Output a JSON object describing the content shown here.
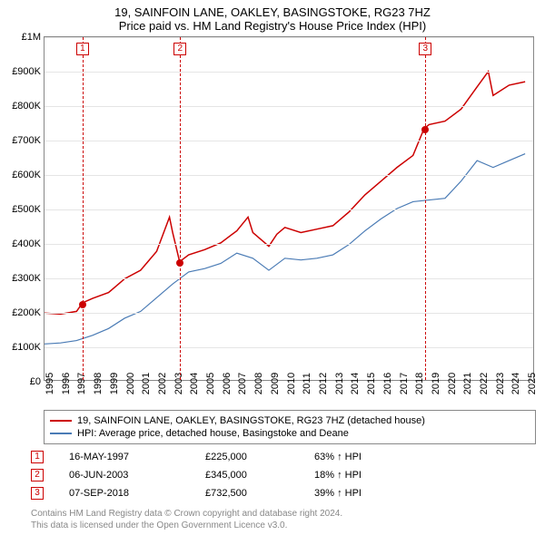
{
  "title": "19, SAINFOIN LANE, OAKLEY, BASINGSTOKE, RG23 7HZ",
  "subtitle": "Price paid vs. HM Land Registry's House Price Index (HPI)",
  "chart": {
    "type": "line",
    "ylim": [
      0,
      1000000
    ],
    "ytick_step": 100000,
    "ylabels": [
      "£0",
      "£100K",
      "£200K",
      "£300K",
      "£400K",
      "£500K",
      "£600K",
      "£700K",
      "£800K",
      "£900K",
      "£1M"
    ],
    "xlim": [
      1995,
      2025.5
    ],
    "xticks": [
      1995,
      1996,
      1997,
      1998,
      1999,
      2000,
      2001,
      2002,
      2003,
      2004,
      2005,
      2006,
      2007,
      2008,
      2009,
      2010,
      2011,
      2012,
      2013,
      2014,
      2015,
      2016,
      2017,
      2018,
      2019,
      2020,
      2021,
      2022,
      2023,
      2024,
      2025
    ],
    "background_color": "#ffffff",
    "grid_color": "#e5e5e5",
    "border_color": "#888888",
    "series": [
      {
        "name": "property",
        "color": "#cc0000",
        "width": 1.5,
        "data": [
          [
            1995,
            195000
          ],
          [
            1996,
            192000
          ],
          [
            1997,
            200000
          ],
          [
            1997.37,
            225000
          ],
          [
            1998,
            238000
          ],
          [
            1999,
            255000
          ],
          [
            2000,
            295000
          ],
          [
            2001,
            320000
          ],
          [
            2002,
            375000
          ],
          [
            2002.8,
            475000
          ],
          [
            2003,
            430000
          ],
          [
            2003.43,
            345000
          ],
          [
            2004,
            365000
          ],
          [
            2005,
            380000
          ],
          [
            2006,
            400000
          ],
          [
            2007,
            435000
          ],
          [
            2007.7,
            475000
          ],
          [
            2008,
            430000
          ],
          [
            2009,
            390000
          ],
          [
            2009.5,
            425000
          ],
          [
            2010,
            445000
          ],
          [
            2011,
            430000
          ],
          [
            2012,
            440000
          ],
          [
            2013,
            450000
          ],
          [
            2014,
            490000
          ],
          [
            2015,
            540000
          ],
          [
            2016,
            580000
          ],
          [
            2017,
            620000
          ],
          [
            2018,
            655000
          ],
          [
            2018.68,
            732500
          ],
          [
            2019,
            745000
          ],
          [
            2020,
            755000
          ],
          [
            2021,
            790000
          ],
          [
            2022,
            855000
          ],
          [
            2022.7,
            900000
          ],
          [
            2023,
            830000
          ],
          [
            2024,
            860000
          ],
          [
            2025,
            870000
          ]
        ]
      },
      {
        "name": "hpi",
        "color": "#4a7bb5",
        "width": 1.2,
        "data": [
          [
            1995,
            105000
          ],
          [
            1996,
            108000
          ],
          [
            1997,
            115000
          ],
          [
            1998,
            130000
          ],
          [
            1999,
            150000
          ],
          [
            2000,
            180000
          ],
          [
            2001,
            200000
          ],
          [
            2002,
            240000
          ],
          [
            2003,
            280000
          ],
          [
            2004,
            315000
          ],
          [
            2005,
            325000
          ],
          [
            2006,
            340000
          ],
          [
            2007,
            370000
          ],
          [
            2008,
            355000
          ],
          [
            2009,
            320000
          ],
          [
            2010,
            355000
          ],
          [
            2011,
            350000
          ],
          [
            2012,
            355000
          ],
          [
            2013,
            365000
          ],
          [
            2014,
            395000
          ],
          [
            2015,
            435000
          ],
          [
            2016,
            470000
          ],
          [
            2017,
            500000
          ],
          [
            2018,
            520000
          ],
          [
            2019,
            525000
          ],
          [
            2020,
            530000
          ],
          [
            2021,
            580000
          ],
          [
            2022,
            640000
          ],
          [
            2023,
            620000
          ],
          [
            2024,
            640000
          ],
          [
            2025,
            660000
          ]
        ]
      }
    ],
    "markers": [
      {
        "n": "1",
        "x": 1997.37,
        "y": 225000,
        "color": "#cc0000"
      },
      {
        "n": "2",
        "x": 2003.43,
        "y": 345000,
        "color": "#cc0000"
      },
      {
        "n": "3",
        "x": 2018.68,
        "y": 732500,
        "color": "#cc0000"
      }
    ]
  },
  "legend": [
    {
      "color": "#cc0000",
      "label": "19, SAINFOIN LANE, OAKLEY, BASINGSTOKE, RG23 7HZ (detached house)"
    },
    {
      "color": "#4a7bb5",
      "label": "HPI: Average price, detached house, Basingstoke and Deane"
    }
  ],
  "transactions": [
    {
      "n": "1",
      "date": "16-MAY-1997",
      "price": "£225,000",
      "pct": "63% ↑ HPI",
      "color": "#cc0000"
    },
    {
      "n": "2",
      "date": "06-JUN-2003",
      "price": "£345,000",
      "pct": "18% ↑ HPI",
      "color": "#cc0000"
    },
    {
      "n": "3",
      "date": "07-SEP-2018",
      "price": "£732,500",
      "pct": "39% ↑ HPI",
      "color": "#cc0000"
    }
  ],
  "footer1": "Contains HM Land Registry data © Crown copyright and database right 2024.",
  "footer2": "This data is licensed under the Open Government Licence v3.0."
}
